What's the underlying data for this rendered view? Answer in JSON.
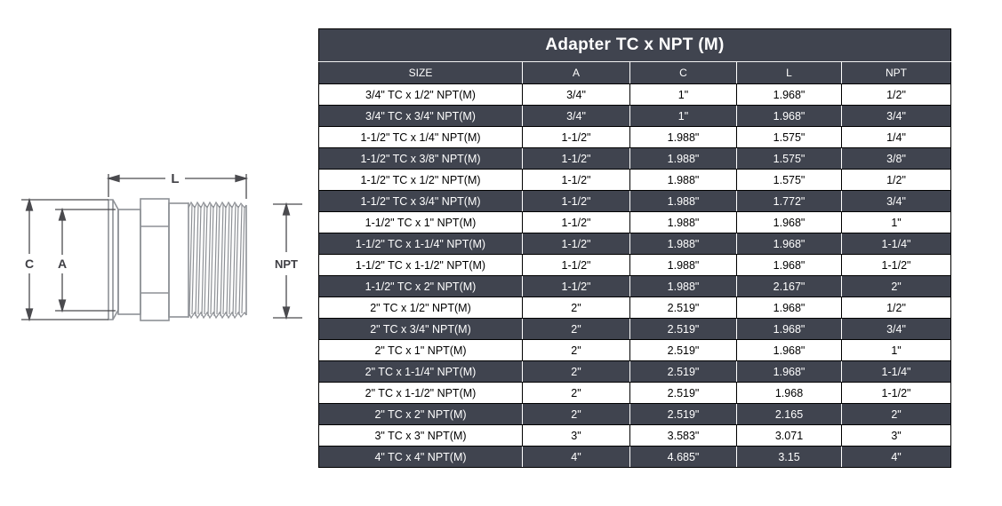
{
  "diagram": {
    "labels": {
      "length": "L",
      "outer": "C",
      "inner": "A",
      "thread": "NPT"
    }
  },
  "table": {
    "title": "Adapter TC x NPT (M)",
    "columns": [
      "SIZE",
      "A",
      "C",
      "L",
      "NPT"
    ],
    "rows": [
      [
        "3/4\" TC x 1/2\" NPT(M)",
        "3/4\"",
        "1\"",
        "1.968\"",
        "1/2\""
      ],
      [
        "3/4\" TC x 3/4\" NPT(M)",
        "3/4\"",
        "1\"",
        "1.968\"",
        "3/4\""
      ],
      [
        "1-1/2\" TC x 1/4\" NPT(M)",
        "1-1/2\"",
        "1.988\"",
        "1.575\"",
        "1/4\""
      ],
      [
        "1-1/2\" TC x 3/8\" NPT(M)",
        "1-1/2\"",
        "1.988\"",
        "1.575\"",
        "3/8\""
      ],
      [
        "1-1/2\" TC x 1/2\" NPT(M)",
        "1-1/2\"",
        "1.988\"",
        "1.575\"",
        "1/2\""
      ],
      [
        "1-1/2\" TC x 3/4\" NPT(M)",
        "1-1/2\"",
        "1.988\"",
        "1.772\"",
        "3/4\""
      ],
      [
        "1-1/2\" TC x 1\" NPT(M)",
        "1-1/2\"",
        "1.988\"",
        "1.968\"",
        "1\""
      ],
      [
        "1-1/2\" TC x 1-1/4\" NPT(M)",
        "1-1/2\"",
        "1.988\"",
        "1.968\"",
        "1-1/4\""
      ],
      [
        "1-1/2\" TC x 1-1/2\" NPT(M)",
        "1-1/2\"",
        "1.988\"",
        "1.968\"",
        "1-1/2\""
      ],
      [
        "1-1/2\" TC x 2\" NPT(M)",
        "1-1/2\"",
        "1.988\"",
        "2.167\"",
        "2\""
      ],
      [
        "2\" TC x 1/2\" NPT(M)",
        "2\"",
        "2.519\"",
        "1.968\"",
        "1/2\""
      ],
      [
        "2\" TC x 3/4\" NPT(M)",
        "2\"",
        "2.519\"",
        "1.968\"",
        "3/4\""
      ],
      [
        "2\" TC x 1\" NPT(M)",
        "2\"",
        "2.519\"",
        "1.968\"",
        "1\""
      ],
      [
        "2\" TC x 1-1/4\" NPT(M)",
        "2\"",
        "2.519\"",
        "1.968\"",
        "1-1/4\""
      ],
      [
        "2\" TC x 1-1/2\" NPT(M)",
        "2\"",
        "2.519\"",
        "1.968",
        "1-1/2\""
      ],
      [
        "2\" TC x 2\" NPT(M)",
        "2\"",
        "2.519\"",
        "2.165",
        "2\""
      ],
      [
        "3\" TC x 3\" NPT(M)",
        "3\"",
        "3.583\"",
        "3.071",
        "3\""
      ],
      [
        "4\" TC x 4\" NPT(M)",
        "4\"",
        "4.685\"",
        "3.15",
        "4\""
      ]
    ]
  },
  "colors": {
    "dark_slate": "#40444F",
    "row_white": "#ffffff",
    "part_outline": "#8e9196",
    "dimension_line": "#4a4a4e"
  }
}
